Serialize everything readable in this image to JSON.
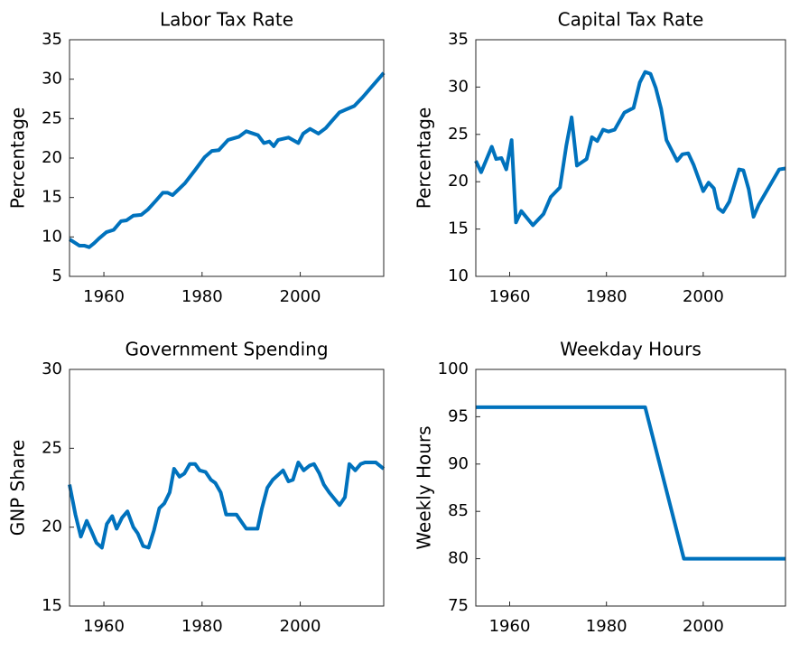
{
  "chart_data": [
    {
      "type": "line",
      "title": "Labor Tax Rate",
      "y_label": "Percentage",
      "color": "#0072bd",
      "x": [
        1953,
        1954,
        1955,
        1956,
        1957,
        1958,
        1959,
        1960.5,
        1962,
        1963.5,
        1964.6,
        1966,
        1967.6,
        1969,
        1970.6,
        1972,
        1973,
        1974,
        1976.5,
        1978.6,
        1980.5,
        1982,
        1983.4,
        1985.3,
        1987.5,
        1989,
        1991.4,
        1992.6,
        1993.7,
        1994.6,
        1995.5,
        1997.6,
        1999.6,
        2000.6,
        2002,
        2003.7,
        2005.2,
        2006.3,
        2008,
        2011,
        2012.7,
        2014.5,
        2016.6,
        2017
      ],
      "values": [
        9.7,
        9.3,
        8.9,
        8.9,
        8.7,
        9.2,
        9.8,
        10.6,
        10.9,
        12.0,
        12.1,
        12.7,
        12.8,
        13.5,
        14.6,
        15.6,
        15.6,
        15.3,
        16.8,
        18.5,
        20.1,
        20.9,
        21.0,
        22.3,
        22.7,
        23.4,
        22.9,
        21.9,
        22.1,
        21.5,
        22.3,
        22.6,
        21.9,
        23.1,
        23.7,
        23.1,
        23.8,
        24.6,
        25.8,
        26.6,
        27.7,
        29.0,
        30.5,
        30.8
      ],
      "xlim": [
        1953,
        2017
      ],
      "ylim": [
        5,
        35
      ],
      "xticks": [
        1960,
        1980,
        2000
      ],
      "yticks": [
        5,
        10,
        15,
        20,
        25,
        30,
        35
      ]
    },
    {
      "type": "line",
      "title": "Capital Tax Rate",
      "y_label": "Percentage",
      "color": "#0072bd",
      "x": [
        1953,
        1954.1,
        1956.3,
        1957.2,
        1958.3,
        1959.3,
        1960.4,
        1961.3,
        1962.4,
        1964.8,
        1967,
        1968.5,
        1970.4,
        1971.7,
        1972.8,
        1973.9,
        1975.9,
        1977,
        1978.1,
        1979.3,
        1980.4,
        1981.7,
        1983.7,
        1985.6,
        1986.9,
        1988,
        1989.1,
        1990.2,
        1991.3,
        1992.4,
        1994.6,
        1995.7,
        1996.9,
        1998,
        2000,
        2001.1,
        2002.2,
        2003.1,
        2004.1,
        2005.4,
        2007.4,
        2008.3,
        2009.4,
        2010.4,
        2011.5,
        2015.7,
        2017
      ],
      "values": [
        22.2,
        21.0,
        23.7,
        22.4,
        22.5,
        21.3,
        24.4,
        15.7,
        16.9,
        15.4,
        16.6,
        18.4,
        19.4,
        23.8,
        26.8,
        21.7,
        22.4,
        24.7,
        24.3,
        25.5,
        25.3,
        25.5,
        27.3,
        27.8,
        30.5,
        31.6,
        31.4,
        29.9,
        27.7,
        24.4,
        22.2,
        22.9,
        23.0,
        21.8,
        19.0,
        19.9,
        19.3,
        17.2,
        16.8,
        17.9,
        21.3,
        21.2,
        19.2,
        16.3,
        17.6,
        21.3,
        21.4
      ],
      "xlim": [
        1953,
        2017
      ],
      "ylim": [
        10,
        35
      ],
      "xticks": [
        1960,
        1980,
        2000
      ],
      "yticks": [
        10,
        15,
        20,
        25,
        30,
        35
      ]
    },
    {
      "type": "line",
      "title": "Government Spending",
      "y_label": "GNP Share",
      "color": "#0072bd",
      "x": [
        1953,
        1954.2,
        1955.3,
        1956.5,
        1957.4,
        1958.5,
        1959.6,
        1960.6,
        1961.7,
        1962.6,
        1963.7,
        1964.8,
        1966,
        1966.9,
        1968,
        1969.1,
        1970.2,
        1971.3,
        1972.3,
        1973.4,
        1974.3,
        1975.4,
        1976.4,
        1977.5,
        1978.6,
        1979.5,
        1980.7,
        1981.8,
        1982.7,
        1983.8,
        1984.9,
        1987,
        1988.1,
        1989,
        1990.1,
        1991.3,
        1992.2,
        1993.3,
        1994.4,
        1996.5,
        1997.6,
        1998.5,
        1999.6,
        2000.7,
        2001.9,
        2002.8,
        2003.9,
        2004.8,
        2005.9,
        2008,
        2009.1,
        2010,
        2011.2,
        2012.3,
        2013.2,
        2015.4,
        2017
      ],
      "values": [
        22.7,
        20.8,
        19.4,
        20.4,
        19.8,
        19.0,
        18.7,
        20.2,
        20.7,
        19.9,
        20.6,
        21.0,
        20.0,
        19.6,
        18.8,
        18.7,
        19.8,
        21.2,
        21.5,
        22.2,
        23.7,
        23.2,
        23.4,
        24.0,
        24.0,
        23.6,
        23.5,
        23.0,
        22.8,
        22.2,
        20.8,
        20.8,
        20.3,
        19.9,
        19.9,
        19.9,
        21.2,
        22.5,
        23.0,
        23.6,
        22.9,
        23.0,
        24.1,
        23.6,
        23.9,
        24.0,
        23.4,
        22.7,
        22.2,
        21.4,
        21.9,
        24.0,
        23.6,
        24.0,
        24.1,
        24.1,
        23.7
      ],
      "xlim": [
        1953,
        2017
      ],
      "ylim": [
        15,
        30
      ],
      "xticks": [
        1960,
        1980,
        2000
      ],
      "yticks": [
        15,
        20,
        25,
        30
      ]
    },
    {
      "type": "line",
      "title": "Weekday Hours",
      "y_label": "Weekly Hours",
      "color": "#0072bd",
      "x": [
        1953,
        1988,
        1996,
        2017
      ],
      "values": [
        96,
        96,
        80,
        80
      ],
      "xlim": [
        1953,
        2017
      ],
      "ylim": [
        75,
        100
      ],
      "xticks": [
        1960,
        1980,
        2000
      ],
      "yticks": [
        75,
        80,
        85,
        90,
        95,
        100
      ]
    }
  ]
}
